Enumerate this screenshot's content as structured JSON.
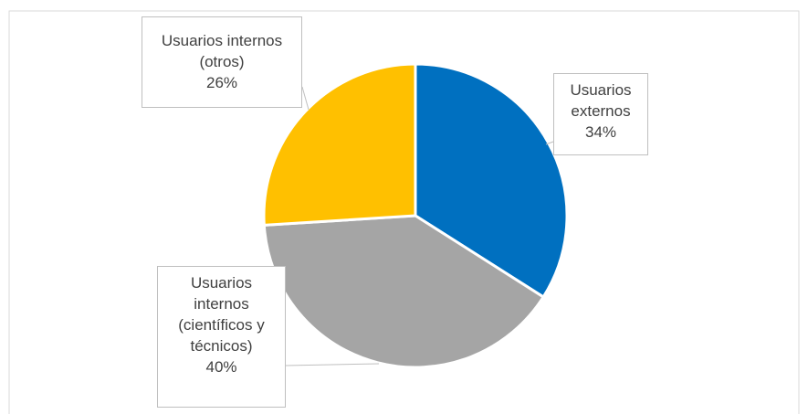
{
  "chart_data": {
    "type": "pie",
    "categories": [
      "Usuarios externos",
      "Usuarios internos (científicos y técnicos)",
      "Usuarios internos (otros)"
    ],
    "values": [
      34,
      40,
      26
    ],
    "value_labels": [
      "34%",
      "40%",
      "26%"
    ],
    "colors": [
      "#0070c0",
      "#a5a5a5",
      "#ffc000"
    ]
  }
}
